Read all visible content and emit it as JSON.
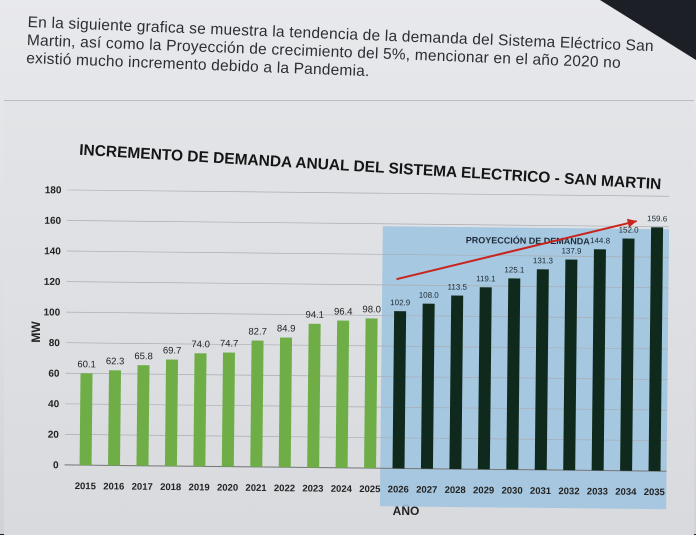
{
  "intro_text": "En la siguiente grafica se muestra la tendencia de la demanda del Sistema Eléctrico San Martin, así como la Proyección de crecimiento del 5%, mencionar en el año 2020 no existió mucho incremento debido a la Pandemia.",
  "colors": {
    "historic_bar": "#6fae47",
    "projection_bar": "#0f2a1c",
    "projection_area": "#9cc3df",
    "trend_arrow": "#c8241d"
  },
  "chart_data": {
    "type": "bar",
    "title": "INCREMENTO DE DEMANDA ANUAL DEL SISTEMA ELECTRICO - SAN MARTIN",
    "xlabel": "AÑO",
    "ylabel": "MW",
    "ylim": [
      0,
      180
    ],
    "yticks": [
      0,
      20,
      40,
      60,
      80,
      100,
      120,
      140,
      160,
      180
    ],
    "grid": true,
    "projection_region_label": "PROYECCIÓN DE DEMANDA",
    "categories": [
      "2015",
      "2016",
      "2017",
      "2018",
      "2019",
      "2020",
      "2021",
      "2022",
      "2023",
      "2024",
      "2025",
      "2026",
      "2027",
      "2028",
      "2029",
      "2030",
      "2031",
      "2032",
      "2033",
      "2034",
      "2035"
    ],
    "series": [
      {
        "values": [
          60.1,
          62.3,
          65.8,
          69.7,
          74.0,
          74.7,
          82.7,
          84.9,
          94.1,
          96.4,
          98.0,
          null,
          null,
          null,
          null,
          null,
          null,
          null,
          null,
          null,
          null
        ],
        "labels": [
          "60.1",
          "62.3",
          "65.8",
          "69.7",
          "74.0",
          "74.7",
          "82.7",
          "84.9",
          "94.1",
          "96.4",
          "98.0",
          "",
          "",
          "",
          "",
          "",
          "",
          "",
          "",
          "",
          ""
        ]
      },
      {
        "values": [
          null,
          null,
          null,
          null,
          null,
          null,
          null,
          null,
          null,
          null,
          null,
          102.9,
          108.0,
          113.5,
          119.1,
          125.1,
          131.3,
          137.9,
          144.8,
          152.0,
          159.6
        ],
        "labels": [
          "",
          "",
          "",
          "",
          "",
          "",
          "",
          "",
          "",
          "",
          "",
          "102.9",
          "108.0",
          "113.5",
          "119.1",
          "125.1",
          "131.3",
          "137.9",
          "144.8",
          "152.0",
          "159.6"
        ]
      }
    ]
  }
}
